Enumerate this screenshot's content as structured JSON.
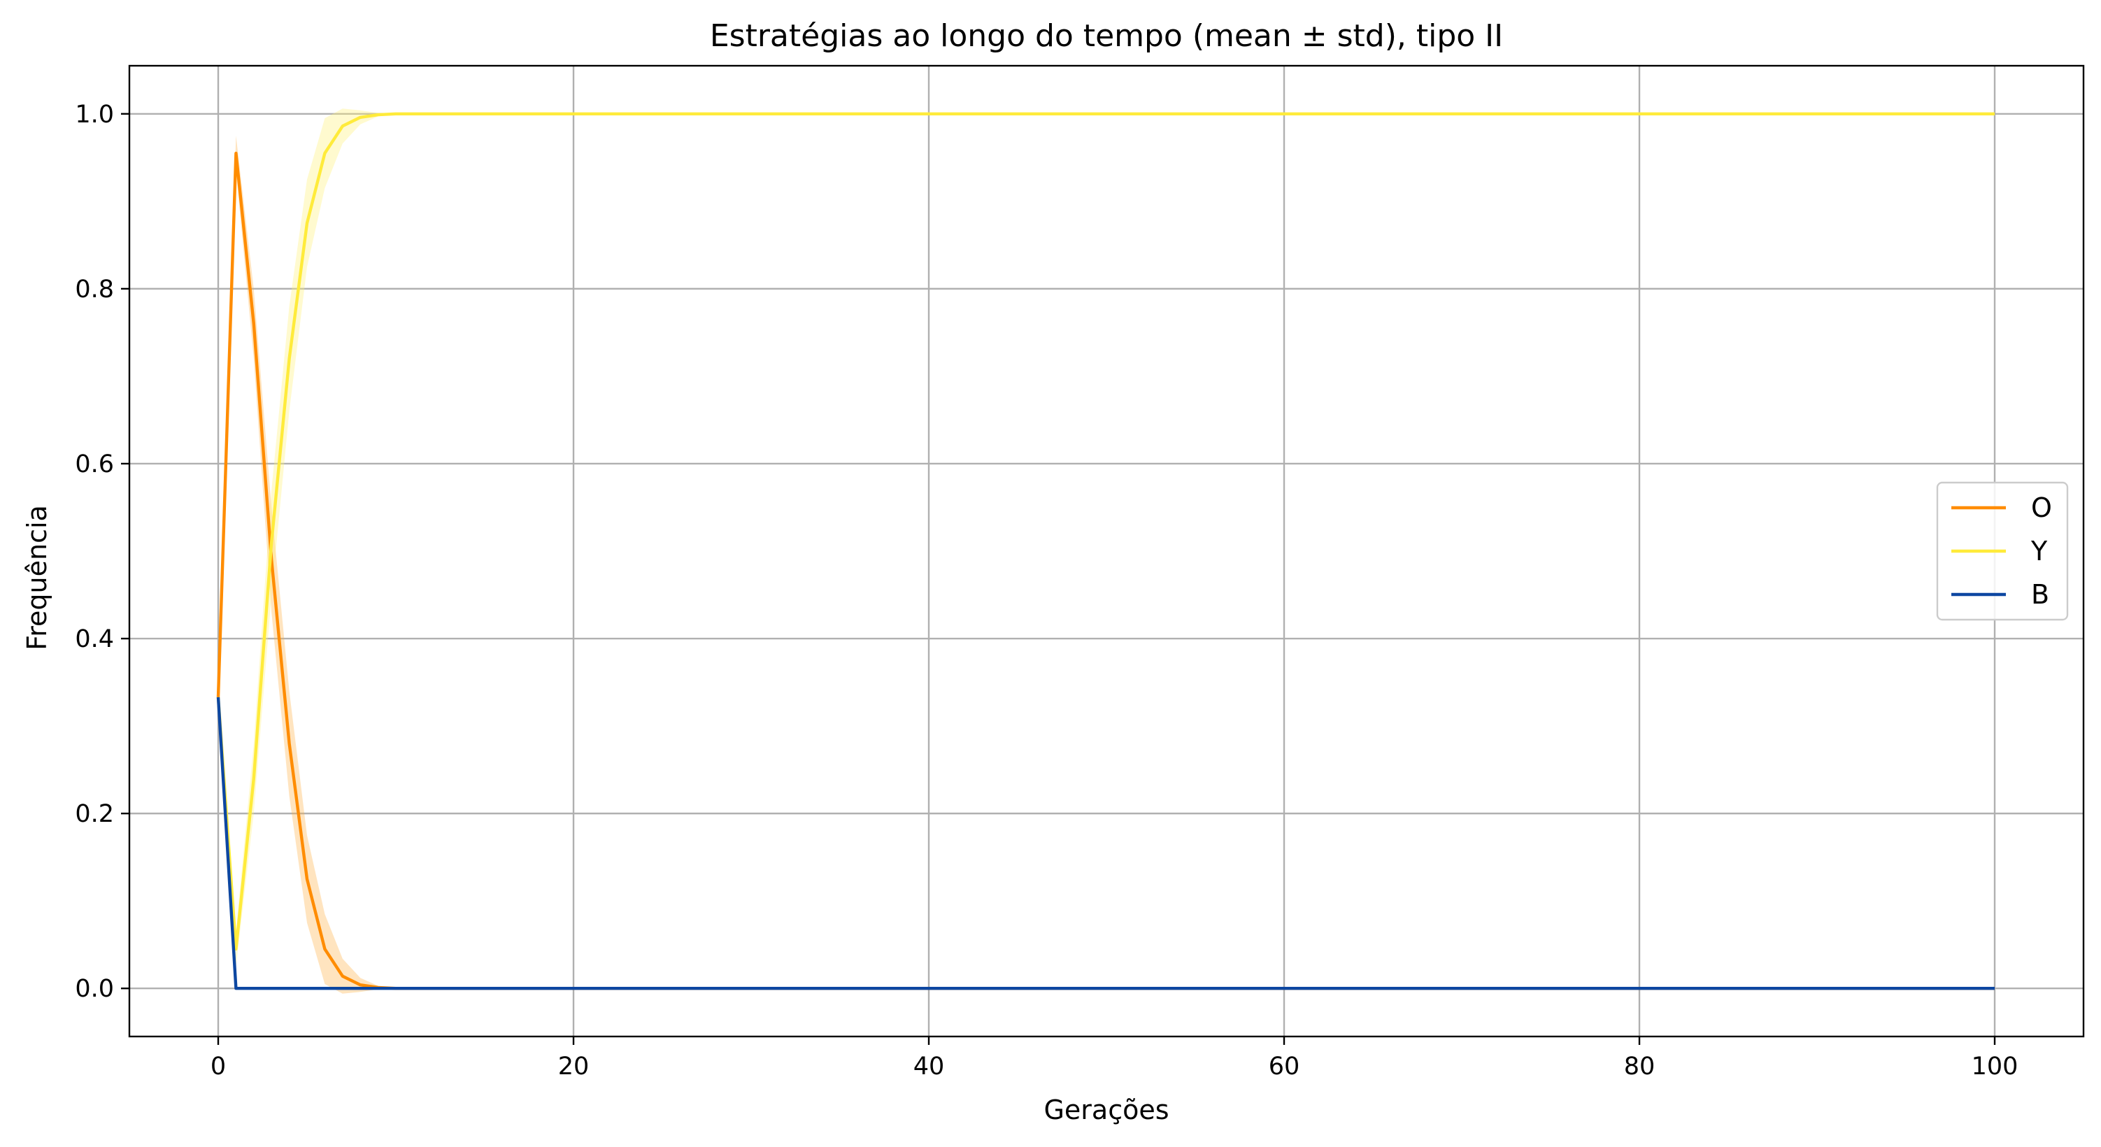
{
  "chart_data": {
    "type": "line",
    "title": "Estratégias ao longo do tempo (mean ± std), tipo II",
    "xlabel": "Gerações",
    "ylabel": "Frequência",
    "xlim": [
      -5,
      105
    ],
    "ylim": [
      -0.055,
      1.055
    ],
    "xticks": [
      0,
      20,
      40,
      60,
      80,
      100
    ],
    "xtick_labels": [
      "0",
      "20",
      "40",
      "60",
      "80",
      "100"
    ],
    "yticks": [
      0.0,
      0.2,
      0.4,
      0.6,
      0.8,
      1.0
    ],
    "ytick_labels": [
      "0.0",
      "0.2",
      "0.4",
      "0.6",
      "0.8",
      "1.0"
    ],
    "grid": true,
    "legend_position": "center-right",
    "x": [
      0,
      1,
      2,
      3,
      4,
      5,
      6,
      7,
      8,
      9,
      10,
      11,
      12,
      13,
      14,
      15,
      16,
      17,
      18,
      19,
      20,
      21,
      22,
      23,
      24,
      25,
      26,
      27,
      28,
      29,
      30,
      31,
      32,
      33,
      34,
      35,
      36,
      37,
      38,
      39,
      40,
      41,
      42,
      43,
      44,
      45,
      46,
      47,
      48,
      49,
      50,
      51,
      52,
      53,
      54,
      55,
      56,
      57,
      58,
      59,
      60,
      61,
      62,
      63,
      64,
      65,
      66,
      67,
      68,
      69,
      70,
      71,
      72,
      73,
      74,
      75,
      76,
      77,
      78,
      79,
      80,
      81,
      82,
      83,
      84,
      85,
      86,
      87,
      88,
      89,
      90,
      91,
      92,
      93,
      94,
      95,
      96,
      97,
      98,
      99,
      100
    ],
    "series": [
      {
        "name": "O",
        "color": "#ff8c00",
        "band_color": "#ffb347",
        "mean": [
          0.333,
          0.955,
          0.76,
          0.49,
          0.28,
          0.125,
          0.045,
          0.014,
          0.004,
          0.001,
          0,
          0,
          0,
          0,
          0,
          0,
          0,
          0,
          0,
          0,
          0,
          0,
          0,
          0,
          0,
          0,
          0,
          0,
          0,
          0,
          0,
          0,
          0,
          0,
          0,
          0,
          0,
          0,
          0,
          0,
          0,
          0,
          0,
          0,
          0,
          0,
          0,
          0,
          0,
          0,
          0,
          0,
          0,
          0,
          0,
          0,
          0,
          0,
          0,
          0,
          0,
          0,
          0,
          0,
          0,
          0,
          0,
          0,
          0,
          0,
          0,
          0,
          0,
          0,
          0,
          0,
          0,
          0,
          0,
          0,
          0,
          0,
          0,
          0,
          0,
          0,
          0,
          0,
          0,
          0,
          0,
          0,
          0,
          0,
          0,
          0,
          0,
          0,
          0,
          0,
          0
        ],
        "std": [
          0,
          0.02,
          0.04,
          0.06,
          0.06,
          0.05,
          0.04,
          0.02,
          0.008,
          0.002,
          0,
          0,
          0,
          0,
          0,
          0,
          0,
          0,
          0,
          0,
          0,
          0,
          0,
          0,
          0,
          0,
          0,
          0,
          0,
          0,
          0,
          0,
          0,
          0,
          0,
          0,
          0,
          0,
          0,
          0,
          0,
          0,
          0,
          0,
          0,
          0,
          0,
          0,
          0,
          0,
          0,
          0,
          0,
          0,
          0,
          0,
          0,
          0,
          0,
          0,
          0,
          0,
          0,
          0,
          0,
          0,
          0,
          0,
          0,
          0,
          0,
          0,
          0,
          0,
          0,
          0,
          0,
          0,
          0,
          0,
          0,
          0,
          0,
          0,
          0,
          0,
          0,
          0,
          0,
          0,
          0,
          0,
          0,
          0,
          0,
          0,
          0,
          0,
          0,
          0,
          0
        ]
      },
      {
        "name": "Y",
        "color": "#ffeb3b",
        "band_color": "#fff176",
        "mean": [
          0.333,
          0.045,
          0.24,
          0.51,
          0.72,
          0.875,
          0.955,
          0.986,
          0.996,
          0.999,
          1,
          1,
          1,
          1,
          1,
          1,
          1,
          1,
          1,
          1,
          1,
          1,
          1,
          1,
          1,
          1,
          1,
          1,
          1,
          1,
          1,
          1,
          1,
          1,
          1,
          1,
          1,
          1,
          1,
          1,
          1,
          1,
          1,
          1,
          1,
          1,
          1,
          1,
          1,
          1,
          1,
          1,
          1,
          1,
          1,
          1,
          1,
          1,
          1,
          1,
          1,
          1,
          1,
          1,
          1,
          1,
          1,
          1,
          1,
          1,
          1,
          1,
          1,
          1,
          1,
          1,
          1,
          1,
          1,
          1,
          1,
          1,
          1,
          1,
          1,
          1,
          1,
          1,
          1,
          1,
          1,
          1,
          1,
          1,
          1,
          1,
          1,
          1,
          1,
          1,
          1
        ],
        "std": [
          0,
          0.02,
          0.04,
          0.06,
          0.06,
          0.05,
          0.04,
          0.02,
          0.008,
          0.002,
          0,
          0,
          0,
          0,
          0,
          0,
          0,
          0,
          0,
          0,
          0,
          0,
          0,
          0,
          0,
          0,
          0,
          0,
          0,
          0,
          0,
          0,
          0,
          0,
          0,
          0,
          0,
          0,
          0,
          0,
          0,
          0,
          0,
          0,
          0,
          0,
          0,
          0,
          0,
          0,
          0,
          0,
          0,
          0,
          0,
          0,
          0,
          0,
          0,
          0,
          0,
          0,
          0,
          0,
          0,
          0,
          0,
          0,
          0,
          0,
          0,
          0,
          0,
          0,
          0,
          0,
          0,
          0,
          0,
          0,
          0,
          0,
          0,
          0,
          0,
          0,
          0,
          0,
          0,
          0,
          0,
          0,
          0,
          0,
          0,
          0,
          0,
          0,
          0,
          0,
          0
        ]
      },
      {
        "name": "B",
        "color": "#0d47a1",
        "band_color": "#5c7cc4",
        "mean": [
          0.333,
          0,
          0,
          0,
          0,
          0,
          0,
          0,
          0,
          0,
          0,
          0,
          0,
          0,
          0,
          0,
          0,
          0,
          0,
          0,
          0,
          0,
          0,
          0,
          0,
          0,
          0,
          0,
          0,
          0,
          0,
          0,
          0,
          0,
          0,
          0,
          0,
          0,
          0,
          0,
          0,
          0,
          0,
          0,
          0,
          0,
          0,
          0,
          0,
          0,
          0,
          0,
          0,
          0,
          0,
          0,
          0,
          0,
          0,
          0,
          0,
          0,
          0,
          0,
          0,
          0,
          0,
          0,
          0,
          0,
          0,
          0,
          0,
          0,
          0,
          0,
          0,
          0,
          0,
          0,
          0,
          0,
          0,
          0,
          0,
          0,
          0,
          0,
          0,
          0,
          0,
          0,
          0,
          0,
          0,
          0,
          0,
          0,
          0,
          0,
          0
        ],
        "std": [
          0,
          0,
          0,
          0,
          0,
          0,
          0,
          0,
          0,
          0,
          0,
          0,
          0,
          0,
          0,
          0,
          0,
          0,
          0,
          0,
          0,
          0,
          0,
          0,
          0,
          0,
          0,
          0,
          0,
          0,
          0,
          0,
          0,
          0,
          0,
          0,
          0,
          0,
          0,
          0,
          0,
          0,
          0,
          0,
          0,
          0,
          0,
          0,
          0,
          0,
          0,
          0,
          0,
          0,
          0,
          0,
          0,
          0,
          0,
          0,
          0,
          0,
          0,
          0,
          0,
          0,
          0,
          0,
          0,
          0,
          0,
          0,
          0,
          0,
          0,
          0,
          0,
          0,
          0,
          0,
          0,
          0,
          0,
          0,
          0,
          0,
          0,
          0,
          0,
          0,
          0,
          0,
          0,
          0,
          0,
          0,
          0,
          0,
          0,
          0,
          0
        ]
      }
    ]
  }
}
